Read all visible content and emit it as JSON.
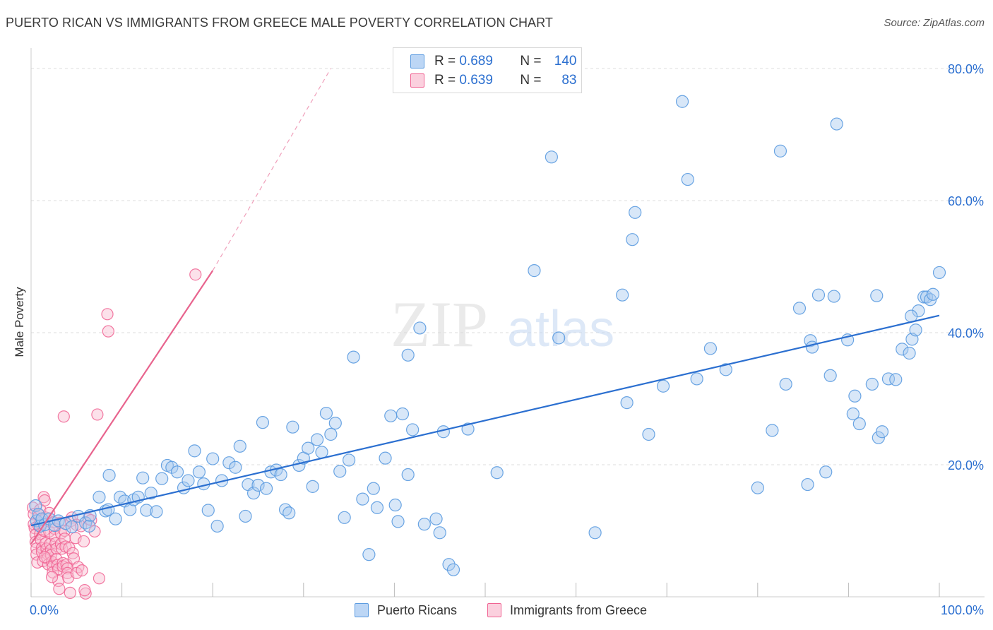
{
  "title": "PUERTO RICAN VS IMMIGRANTS FROM GREECE MALE POVERTY CORRELATION CHART",
  "source": "Source: ZipAtlas.com",
  "watermark": {
    "zip": "ZIP",
    "atlas": "atlas"
  },
  "colors": {
    "blue": "#5b9be0",
    "blue_fill": "#a8c9f0",
    "blue_line": "#2b6fd0",
    "pink": "#f06292",
    "pink_fill": "#f8bcd0",
    "pink_line": "#e8648e",
    "tick_text": "#2b6fd0",
    "grid": "#dddddd"
  },
  "legend_top": [
    {
      "r_label": "R =",
      "r_value": "0.689",
      "n_label": "N =",
      "n_value": "140"
    },
    {
      "r_label": "R =",
      "r_value": "0.639",
      "n_label": "N =",
      "n_value": "83"
    }
  ],
  "chart_data": {
    "type": "scatter",
    "title": "PUERTO RICAN VS IMMIGRANTS FROM GREECE MALE POVERTY CORRELATION CHART",
    "xlabel": "",
    "ylabel": "Male Poverty",
    "xlim": [
      0,
      100
    ],
    "ylim": [
      0,
      80
    ],
    "x_tick_labels": [
      "0.0%",
      "100.0%"
    ],
    "y_ticks": [
      20,
      40,
      60,
      80
    ],
    "y_tick_labels": [
      "20.0%",
      "40.0%",
      "60.0%",
      "80.0%"
    ],
    "grid": true,
    "legend_position": "bottom-center",
    "series": [
      {
        "name": "Puerto Ricans",
        "color": "#5b9be0",
        "r": "0.689",
        "n": "140",
        "trend": {
          "x": [
            0,
            100
          ],
          "y": [
            10.8,
            42.6
          ],
          "style": "solid"
        },
        "points": [
          [
            0.5,
            13.8
          ],
          [
            0.6,
            11.5
          ],
          [
            0.8,
            12.5
          ],
          [
            1.0,
            10.7
          ],
          [
            1.2,
            11.8
          ],
          [
            1.5,
            10.9
          ],
          [
            2.0,
            11.8
          ],
          [
            2.6,
            10.8
          ],
          [
            3.0,
            11.5
          ],
          [
            3.8,
            11.1
          ],
          [
            4.5,
            10.6
          ],
          [
            5.2,
            12.2
          ],
          [
            6.0,
            11.2
          ],
          [
            6.5,
            12.3
          ],
          [
            6.4,
            10.7
          ],
          [
            7.5,
            15.1
          ],
          [
            8.2,
            13.0
          ],
          [
            8.5,
            13.2
          ],
          [
            8.6,
            18.4
          ],
          [
            9.3,
            11.8
          ],
          [
            9.8,
            15.1
          ],
          [
            10.3,
            14.5
          ],
          [
            10.9,
            13.2
          ],
          [
            11.3,
            14.7
          ],
          [
            11.8,
            15.1
          ],
          [
            12.3,
            18.0
          ],
          [
            12.7,
            13.1
          ],
          [
            13.2,
            15.7
          ],
          [
            13.8,
            12.9
          ],
          [
            14.4,
            17.9
          ],
          [
            15.0,
            19.9
          ],
          [
            15.5,
            19.6
          ],
          [
            16.1,
            18.9
          ],
          [
            16.8,
            16.5
          ],
          [
            17.3,
            17.6
          ],
          [
            18.0,
            22.1
          ],
          [
            18.5,
            18.9
          ],
          [
            19.0,
            17.1
          ],
          [
            19.5,
            13.1
          ],
          [
            20.0,
            20.9
          ],
          [
            20.5,
            10.7
          ],
          [
            21.0,
            17.6
          ],
          [
            21.8,
            20.3
          ],
          [
            22.5,
            19.6
          ],
          [
            23.0,
            22.8
          ],
          [
            23.6,
            12.2
          ],
          [
            23.9,
            17.0
          ],
          [
            24.5,
            15.7
          ],
          [
            25.0,
            16.9
          ],
          [
            25.5,
            26.4
          ],
          [
            25.9,
            16.4
          ],
          [
            26.4,
            18.9
          ],
          [
            27.0,
            19.2
          ],
          [
            27.5,
            18.5
          ],
          [
            28.0,
            13.2
          ],
          [
            28.4,
            12.7
          ],
          [
            28.8,
            25.7
          ],
          [
            29.5,
            19.9
          ],
          [
            30.0,
            21.0
          ],
          [
            30.5,
            22.5
          ],
          [
            31.0,
            16.7
          ],
          [
            31.5,
            23.8
          ],
          [
            32.0,
            21.9
          ],
          [
            32.5,
            27.8
          ],
          [
            33.0,
            24.6
          ],
          [
            33.5,
            26.3
          ],
          [
            34.0,
            19.0
          ],
          [
            34.5,
            12.0
          ],
          [
            35.0,
            20.7
          ],
          [
            35.5,
            36.3
          ],
          [
            36.5,
            14.8
          ],
          [
            37.2,
            6.4
          ],
          [
            37.7,
            16.4
          ],
          [
            38.1,
            13.5
          ],
          [
            39.0,
            21.0
          ],
          [
            39.6,
            27.4
          ],
          [
            40.1,
            13.9
          ],
          [
            40.4,
            11.4
          ],
          [
            40.9,
            27.7
          ],
          [
            41.5,
            36.6
          ],
          [
            42.0,
            25.3
          ],
          [
            42.8,
            40.7
          ],
          [
            43.3,
            11.0
          ],
          [
            44.6,
            11.8
          ],
          [
            45.0,
            9.7
          ],
          [
            45.4,
            25.0
          ],
          [
            46.0,
            4.9
          ],
          [
            46.5,
            4.1
          ],
          [
            48.1,
            25.4
          ],
          [
            51.3,
            18.8
          ],
          [
            55.4,
            49.4
          ],
          [
            57.3,
            66.6
          ],
          [
            58.1,
            39.2
          ],
          [
            62.1,
            9.7
          ],
          [
            65.1,
            45.7
          ],
          [
            65.6,
            29.4
          ],
          [
            66.2,
            54.1
          ],
          [
            66.5,
            58.2
          ],
          [
            68.0,
            24.6
          ],
          [
            69.6,
            31.9
          ],
          [
            71.7,
            75.0
          ],
          [
            72.3,
            63.2
          ],
          [
            73.3,
            33.0
          ],
          [
            74.8,
            37.6
          ],
          [
            76.5,
            34.4
          ],
          [
            80.0,
            16.5
          ],
          [
            81.6,
            25.2
          ],
          [
            82.5,
            67.5
          ],
          [
            83.1,
            32.2
          ],
          [
            84.6,
            43.7
          ],
          [
            85.5,
            17.0
          ],
          [
            85.8,
            38.8
          ],
          [
            86.0,
            37.8
          ],
          [
            86.7,
            45.7
          ],
          [
            87.5,
            18.9
          ],
          [
            88.0,
            33.5
          ],
          [
            88.4,
            45.5
          ],
          [
            88.7,
            71.6
          ],
          [
            89.9,
            38.9
          ],
          [
            90.5,
            27.7
          ],
          [
            90.7,
            30.4
          ],
          [
            91.2,
            26.2
          ],
          [
            92.6,
            32.2
          ],
          [
            93.1,
            45.6
          ],
          [
            93.3,
            24.1
          ],
          [
            93.7,
            25.0
          ],
          [
            94.4,
            33.0
          ],
          [
            95.2,
            32.9
          ],
          [
            95.9,
            37.5
          ],
          [
            96.7,
            36.9
          ],
          [
            97.0,
            39.0
          ],
          [
            97.4,
            40.4
          ],
          [
            97.7,
            43.3
          ],
          [
            98.3,
            45.4
          ],
          [
            98.6,
            45.4
          ],
          [
            99.0,
            45.0
          ],
          [
            99.3,
            45.8
          ],
          [
            100.0,
            49.1
          ],
          [
            96.9,
            42.5
          ],
          [
            41.5,
            18.5
          ]
        ]
      },
      {
        "name": "Immigrants from Greece",
        "color": "#f06292",
        "r": "0.639",
        "n": "83",
        "trend": {
          "x": [
            0,
            20
          ],
          "y": [
            8.0,
            49.4
          ],
          "style": "solid",
          "extended_x": [
            20,
            33
          ],
          "extended_y": [
            49.4,
            80.0
          ]
        },
        "points": [
          [
            0.2,
            13.5
          ],
          [
            0.3,
            12.5
          ],
          [
            0.3,
            11.0
          ],
          [
            0.4,
            10.4
          ],
          [
            0.5,
            9.4
          ],
          [
            0.5,
            8.3
          ],
          [
            0.6,
            7.3
          ],
          [
            0.6,
            6.4
          ],
          [
            0.7,
            5.2
          ],
          [
            0.8,
            10.8
          ],
          [
            0.9,
            12.4
          ],
          [
            1.0,
            13.2
          ],
          [
            1.0,
            9.5
          ],
          [
            1.1,
            8.6
          ],
          [
            1.2,
            7.4
          ],
          [
            1.2,
            6.8
          ],
          [
            1.3,
            5.4
          ],
          [
            1.4,
            10.0
          ],
          [
            1.4,
            15.1
          ],
          [
            1.5,
            14.6
          ],
          [
            1.6,
            12.0
          ],
          [
            1.6,
            8.1
          ],
          [
            1.7,
            7.3
          ],
          [
            1.8,
            6.5
          ],
          [
            1.8,
            5.8
          ],
          [
            1.9,
            4.9
          ],
          [
            2.0,
            9.9
          ],
          [
            2.0,
            12.7
          ],
          [
            2.1,
            8.0
          ],
          [
            2.2,
            7.1
          ],
          [
            2.2,
            6.3
          ],
          [
            2.3,
            5.3
          ],
          [
            2.4,
            4.6
          ],
          [
            2.4,
            3.7
          ],
          [
            2.5,
            11.3
          ],
          [
            2.6,
            10.3
          ],
          [
            2.6,
            9.2
          ],
          [
            2.7,
            8.1
          ],
          [
            2.8,
            7.3
          ],
          [
            2.8,
            5.7
          ],
          [
            2.9,
            4.8
          ],
          [
            3.0,
            4.2
          ],
          [
            3.0,
            2.4
          ],
          [
            3.1,
            1.2
          ],
          [
            3.2,
            11.2
          ],
          [
            3.3,
            9.6
          ],
          [
            3.3,
            8.0
          ],
          [
            3.4,
            7.3
          ],
          [
            3.5,
            5.1
          ],
          [
            3.5,
            4.6
          ],
          [
            3.6,
            27.3
          ],
          [
            3.7,
            10.0
          ],
          [
            3.7,
            8.8
          ],
          [
            3.8,
            7.6
          ],
          [
            3.9,
            4.9
          ],
          [
            4.0,
            4.3
          ],
          [
            4.0,
            3.6
          ],
          [
            4.1,
            2.9
          ],
          [
            4.2,
            7.4
          ],
          [
            4.3,
            0.6
          ],
          [
            4.4,
            11.5
          ],
          [
            4.5,
            12.0
          ],
          [
            4.6,
            6.6
          ],
          [
            4.7,
            5.8
          ],
          [
            4.9,
            8.9
          ],
          [
            5.0,
            10.9
          ],
          [
            5.2,
            4.5
          ],
          [
            5.5,
            10.7
          ],
          [
            5.8,
            8.4
          ],
          [
            6.0,
            0.5
          ],
          [
            6.3,
            11.8
          ],
          [
            7.0,
            9.9
          ],
          [
            7.5,
            2.8
          ],
          [
            5.0,
            3.6
          ],
          [
            5.6,
            4.0
          ],
          [
            5.9,
            1.0
          ],
          [
            6.6,
            11.6
          ],
          [
            7.3,
            27.6
          ],
          [
            8.4,
            42.8
          ],
          [
            8.5,
            40.2
          ],
          [
            18.1,
            48.8
          ],
          [
            1.5,
            6.0
          ],
          [
            2.3,
            3.0
          ]
        ]
      }
    ]
  }
}
